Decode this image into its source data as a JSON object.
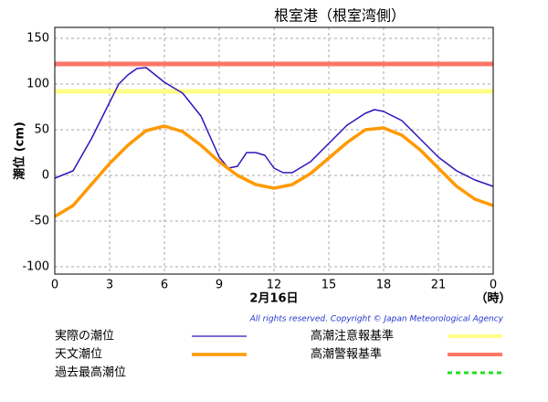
{
  "chart_data": {
    "type": "line",
    "title": "根室港（根室湾側）",
    "y_label": "潮位 (cm)",
    "x_label": "2月16日",
    "x_unit": "（時）",
    "copyright": "All rights reserved. Copyright © Japan Meteorological Agency",
    "xlim": [
      0,
      24
    ],
    "xticks": [
      0,
      3,
      6,
      9,
      12,
      15,
      18,
      21,
      {
        "value": 24,
        "label": "0"
      }
    ],
    "ylim": [
      -108,
      162
    ],
    "yticks": [
      -100,
      -50,
      0,
      50,
      100,
      150
    ],
    "grid": true,
    "series": [
      {
        "name": "実際の潮位",
        "color": "#3311bb",
        "x": [
          0,
          1,
          2,
          3,
          3.5,
          4,
          4.5,
          5,
          5.5,
          6,
          7,
          8,
          9,
          9.5,
          10,
          10.5,
          11,
          11.5,
          12,
          12.5,
          13,
          14,
          15,
          16,
          17,
          17.5,
          18,
          19,
          20,
          21,
          22,
          23,
          24
        ],
        "values": [
          -3,
          5,
          40,
          80,
          100,
          110,
          117,
          118,
          110,
          102,
          90,
          65,
          20,
          8,
          10,
          25,
          25,
          22,
          8,
          3,
          3,
          15,
          35,
          55,
          68,
          72,
          70,
          60,
          40,
          20,
          5,
          -5,
          -12
        ]
      },
      {
        "name": "天文潮位",
        "color": "#ff9900",
        "x": [
          0,
          1,
          2,
          3,
          4,
          5,
          6,
          7,
          8,
          9,
          10,
          11,
          12,
          13,
          14,
          15,
          16,
          17,
          18,
          19,
          20,
          21,
          22,
          23,
          24
        ],
        "values": [
          -45,
          -33,
          -10,
          13,
          33,
          49,
          54,
          48,
          33,
          15,
          0,
          -10,
          -14,
          -10,
          2,
          19,
          36,
          50,
          52,
          44,
          28,
          8,
          -12,
          -26,
          -33
        ]
      }
    ],
    "thresholds": [
      {
        "name": "高潮注意報基準",
        "color": "#ffff88",
        "value": 92
      },
      {
        "name": "高潮警報基準",
        "color": "#ff7766",
        "value": 122
      }
    ],
    "record": {
      "name": "過去最高潮位",
      "color": "#22dd22"
    }
  }
}
